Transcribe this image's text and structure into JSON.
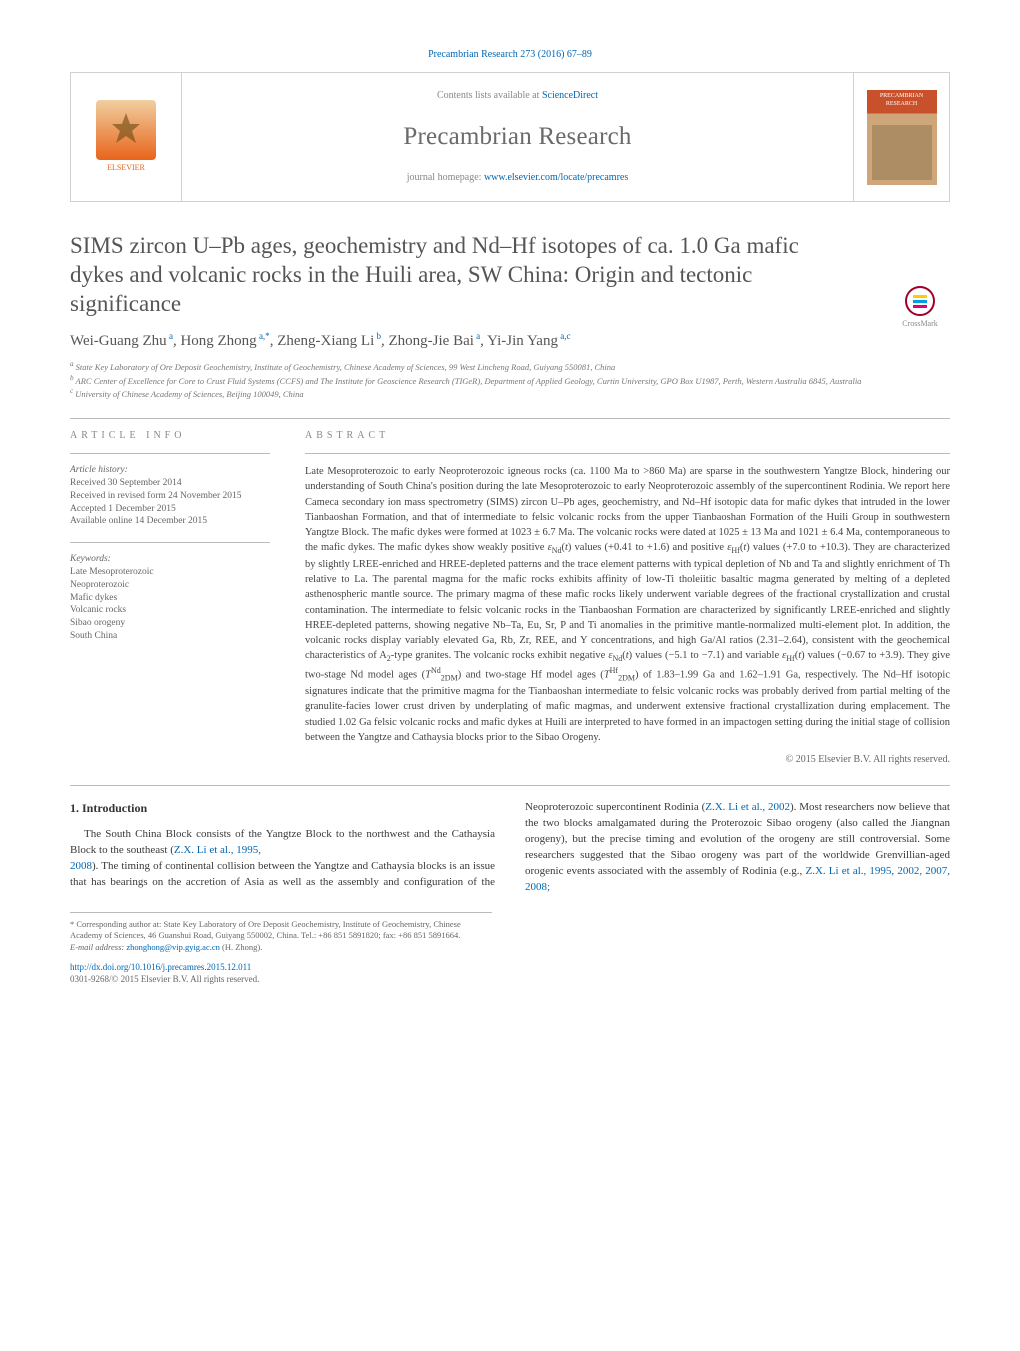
{
  "header": {
    "citation": "Precambrian Research 273 (2016) 67–89",
    "contents_prefix": "Contents lists available at ",
    "contents_link": "ScienceDirect",
    "journal": "Precambrian Research",
    "homepage_prefix": "journal homepage: ",
    "homepage_url": "www.elsevier.com/locate/precamres",
    "publisher": "ELSEVIER",
    "cover_label": "PRECAMBRIAN RESEARCH"
  },
  "crossmark": "CrossMark",
  "title": "SIMS zircon U–Pb ages, geochemistry and Nd–Hf isotopes of ca. 1.0 Ga mafic dykes and volcanic rocks in the Huili area, SW China: Origin and tectonic significance",
  "authors_html": "Wei-Guang Zhu<sup> a</sup>, Hong Zhong<sup> a,*</sup>, Zheng-Xiang Li<sup> b</sup>, Zhong-Jie Bai<sup> a</sup>, Yi-Jin Yang<sup> a,c</sup>",
  "affiliations": [
    "a State Key Laboratory of Ore Deposit Geochemistry, Institute of Geochemistry, Chinese Academy of Sciences, 99 West Lincheng Road, Guiyang 550081, China",
    "b ARC Center of Excellence for Core to Crust Fluid Systems (CCFS) and The Institute for Geoscience Research (TIGeR), Department of Applied Geology, Curtin University, GPO Box U1987, Perth, Western Australia 6845, Australia",
    "c University of Chinese Academy of Sciences, Beijing 100049, China"
  ],
  "article_info": {
    "heading": "ARTICLE INFO",
    "history_label": "Article history:",
    "history": [
      "Received 30 September 2014",
      "Received in revised form 24 November 2015",
      "Accepted 1 December 2015",
      "Available online 14 December 2015"
    ],
    "keywords_label": "Keywords:",
    "keywords": [
      "Late Mesoproterozoic",
      "Neoproterozoic",
      "Mafic dykes",
      "Volcanic rocks",
      "Sibao orogeny",
      "South China"
    ]
  },
  "abstract": {
    "heading": "ABSTRACT",
    "text_html": "Late Mesoproterozoic to early Neoproterozoic igneous rocks (ca. 1100 Ma to &gt;860 Ma) are sparse in the southwestern Yangtze Block, hindering our understanding of South China's position during the late Mesoproterozoic to early Neoproterozoic assembly of the supercontinent Rodinia. We report here Cameca secondary ion mass spectrometry (SIMS) zircon U–Pb ages, geochemistry, and Nd–Hf isotopic data for mafic dykes that intruded in the lower Tianbaoshan Formation, and that of intermediate to felsic volcanic rocks from the upper Tianbaoshan Formation of the Huili Group in southwestern Yangtze Block. The mafic dykes were formed at 1023 ± 6.7 Ma. The volcanic rocks were dated at 1025 ± 13 Ma and 1021 ± 6.4 Ma, contemporaneous to the mafic dykes. The mafic dykes show weakly positive <i>ε</i><sub>Nd</sub>(<i>t</i>) values (+0.41 to +1.6) and positive <i>ε</i><sub>Hf</sub>(<i>t</i>) values (+7.0 to +10.3). They are characterized by slightly LREE-enriched and HREE-depleted patterns and the trace element patterns with typical depletion of Nb and Ta and slightly enrichment of Th relative to La. The parental magma for the mafic rocks exhibits affinity of low-Ti tholeiitic basaltic magma generated by melting of a depleted asthenospheric mantle source. The primary magma of these mafic rocks likely underwent variable degrees of the fractional crystallization and crustal contamination. The intermediate to felsic volcanic rocks in the Tianbaoshan Formation are characterized by significantly LREE-enriched and slightly HREE-depleted patterns, showing negative Nb–Ta, Eu, Sr, P and Ti anomalies in the primitive mantle-normalized multi-element plot. In addition, the volcanic rocks display variably elevated Ga, Rb, Zr, REE, and Y concentrations, and high Ga/Al ratios (2.31–2.64), consistent with the geochemical characteristics of A<sub>2</sub>-type granites. The volcanic rocks exhibit negative <i>ε</i><sub>Nd</sub>(<i>t</i>) values (−5.1 to −7.1) and variable <i>ε</i><sub>Hf</sub>(<i>t</i>) values (−0.67 to +3.9). They give two-stage Nd model ages (<i>T</i><sup>Nd</sup><sub>2DM</sub>) and two-stage Hf model ages (<i>T</i><sup>Hf</sup><sub>2DM</sub>) of 1.83–1.99 Ga and 1.62–1.91 Ga, respectively. The Nd–Hf isotopic signatures indicate that the primitive magma for the Tianbaoshan intermediate to felsic volcanic rocks was probably derived from partial melting of the granulite-facies lower crust driven by underplating of mafic magmas, and underwent extensive fractional crystallization during emplacement. The studied 1.02 Ga felsic volcanic rocks and mafic dykes at Huili are interpreted to have formed in an impactogen setting during the initial stage of collision between the Yangtze and Cathaysia blocks prior to the Sibao Orogeny.",
    "copyright": "© 2015 Elsevier B.V. All rights reserved."
  },
  "section1": {
    "heading": "1. Introduction",
    "para1_html": "The South China Block consists of the Yangtze Block to the northwest and the Cathaysia Block to the southeast (<a>Z.X. Li et al., 1995,</a>",
    "para1_cont_html": "<a>2008</a>). The timing of continental collision between the Yangtze and Cathaysia blocks is an issue that has bearings on the accretion of Asia as well as the assembly and configuration of the Neoproterozoic supercontinent Rodinia (<a>Z.X. Li et al., 2002</a>). Most researchers now believe that the two blocks amalgamated during the Proterozoic Sibao orogeny (also called the Jiangnan orogeny), but the precise timing and evolution of the orogeny are still controversial. Some researchers suggested that the Sibao orogeny was part of the worldwide Grenvillian-aged orogenic events associated with the assembly of Rodinia (e.g., <a>Z.X. Li et al., 1995, 2002, 2007, 2008;</a>"
  },
  "footnotes": {
    "corr": "* Corresponding author at: State Key Laboratory of Ore Deposit Geochemistry, Institute of Geochemistry, Chinese Academy of Sciences, 46 Guanshui Road, Guiyang 550002, China. Tel.: +86 851 5891820; fax: +86 851 5891664.",
    "email_label": "E-mail address: ",
    "email": "zhonghong@vip.gyig.ac.cn",
    "email_suffix": " (H. Zhong)."
  },
  "doi": {
    "url": "http://dx.doi.org/10.1016/j.precamres.2015.12.011",
    "issn_line": "0301-9268/© 2015 Elsevier B.V. All rights reserved."
  },
  "colors": {
    "link": "#0066b3",
    "text": "#3a3a3a",
    "muted": "#888888",
    "rule": "#bbbbbb",
    "elsevier_orange": "#e8641b",
    "cover_red": "#c8512c"
  }
}
